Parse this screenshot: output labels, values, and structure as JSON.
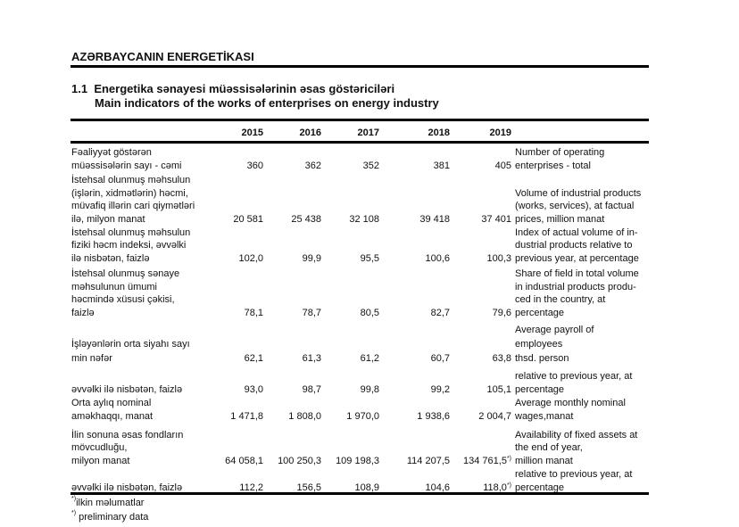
{
  "section": "AZƏRBAYCANIN ENERGETİKASI",
  "table_number": "1.1",
  "title_az": "Energetika sənayesi müəssisələrinin əsas göstəriciləri",
  "title_en": "Main indicators of the works of enterprises on energy industry",
  "years": [
    "2015",
    "2016",
    "2017",
    "2018",
    "2019"
  ],
  "rows": [
    {
      "az": "Fəaliyyət göstərən\nmüəssisələrin sayı - cəmi",
      "values": [
        "360",
        "362",
        "352",
        "381",
        "405"
      ],
      "en": "Number of operating\nenterprises - total",
      "note": ""
    },
    {
      "az": "İstehsal olunmuş məhsulun\n(işlərin, xidmətlərin) həcmi,\nmüvafiq illərin cari qiymətləri\nilə, milyon manat",
      "values": [
        "20 581",
        "25 438",
        "32 108",
        "39 418",
        "37 401"
      ],
      "en": "Volume of industrial products\n(works, services),  at factual\nprices, million manat",
      "note": ""
    },
    {
      "az": "İstehsal olunmuş məhsulun\nfiziki həcm indeksi, əvvəlki\nilə nisbətən, faizlə",
      "values": [
        "102,0",
        "99,9",
        "95,5",
        "100,6",
        "100,3"
      ],
      "en": "Index of actual volume of  in-\ndustrial products relative to\nprevious year, at percentage",
      "note": ""
    },
    {
      "az": "İstehsal olunmuş sənaye\nməhsulunun ümumi\nhəcmində xüsusi çəkisi,\nfaizlə",
      "values": [
        "78,1",
        "78,7",
        "80,5",
        "82,7",
        "79,6"
      ],
      "en": "Share of field in total volume\nin industrial products produ-\nced in the country, at\npercentage",
      "note": ""
    },
    {
      "az": "\nİşləyənlərin orta siyahı sayı\n   min nəfər",
      "values": [
        "62,1",
        "61,3",
        "61,2",
        "60,7",
        "63,8"
      ],
      "en": "Average payroll of\nemployees\n  thsd. person",
      "note": ""
    },
    {
      "az": "   əvvəlki ilə nisbətən, faizlə",
      "values": [
        "93,0",
        "98,7",
        "99,8",
        "99,2",
        "105,1"
      ],
      "en": "  relative to previous year, at\n  percentage",
      "note": ""
    },
    {
      "az": "Orta aylıq nominal\naməkhaqqı, manat",
      "values": [
        "1 471,8",
        "1 808,0",
        "1 970,0",
        "1 938,6",
        "2 004,7"
      ],
      "en": "Average monthly nominal\nwages,manat",
      "note": ""
    },
    {
      "az": "İlin sonuna əsas fondların\nmövcudluğu,\n   milyon manat",
      "values": [
        "64 058,1",
        "100 250,3",
        "109 198,3",
        "114 207,5",
        "134 761,5"
      ],
      "en": "Availability of fixed assets at\nthe end of year,\n  million manat",
      "note": "*)"
    },
    {
      "az": "   əvvəlki ilə nisbətən, faizlə",
      "values": [
        "112,2",
        "156,5",
        "108,9",
        "104,6",
        "118,0"
      ],
      "en": "  relative to previous year, at\n  percentage",
      "note": "*)"
    }
  ],
  "footnotes": {
    "mark": "*)",
    "az": "ilkin məlumatlar",
    "en": "preliminary data"
  }
}
